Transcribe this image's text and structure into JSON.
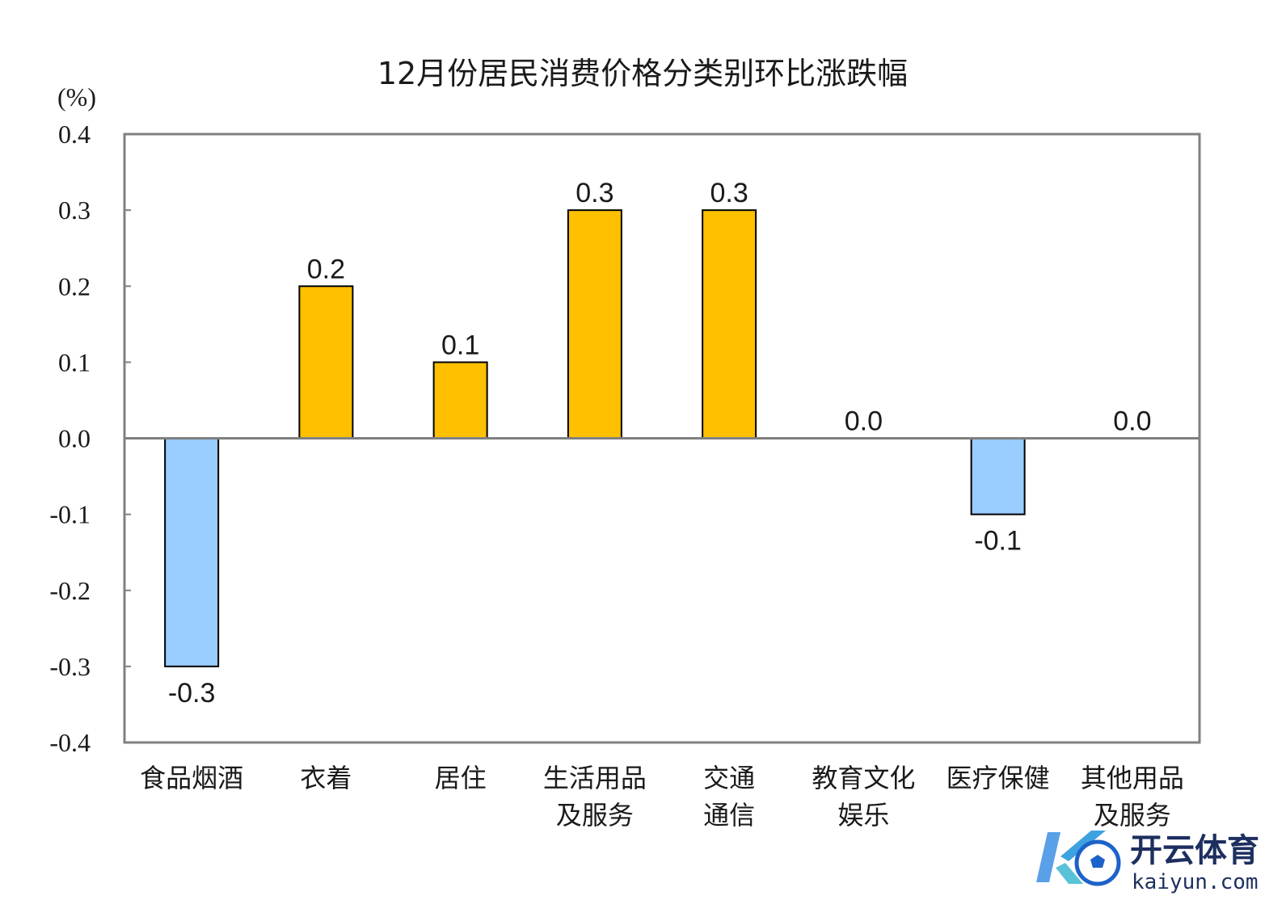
{
  "chart_data": {
    "type": "bar",
    "title": "12月份居民消费价格分类别环比涨跌幅",
    "ylabel": "(%)",
    "ylim": [
      -0.4,
      0.4
    ],
    "yticks": [
      "0.4",
      "0.3",
      "0.2",
      "0.1",
      "0.0",
      "-0.1",
      "-0.2",
      "-0.3",
      "-0.4"
    ],
    "categories": [
      [
        "食品烟酒"
      ],
      [
        "衣着"
      ],
      [
        "居住"
      ],
      [
        "生活用品",
        "及服务"
      ],
      [
        "交通",
        "通信"
      ],
      [
        "教育文化",
        "娱乐"
      ],
      [
        "医疗保健"
      ],
      [
        "其他用品",
        "及服务"
      ]
    ],
    "values": [
      -0.3,
      0.2,
      0.1,
      0.3,
      0.3,
      0.0,
      -0.1,
      0.0
    ],
    "value_labels": [
      "-0.3",
      "0.2",
      "0.1",
      "0.3",
      "0.3",
      "0.0",
      "-0.1",
      "0.0"
    ],
    "colors": {
      "positive": "#ffc000",
      "negative": "#99ccff",
      "axis": "#808080",
      "bar_stroke": "#000000"
    },
    "grid": false,
    "legend": "none"
  },
  "watermark": {
    "brand": "开云体育",
    "site": "kaiyun.com",
    "logo_icon": "k-soccer-ball-logo-icon"
  }
}
